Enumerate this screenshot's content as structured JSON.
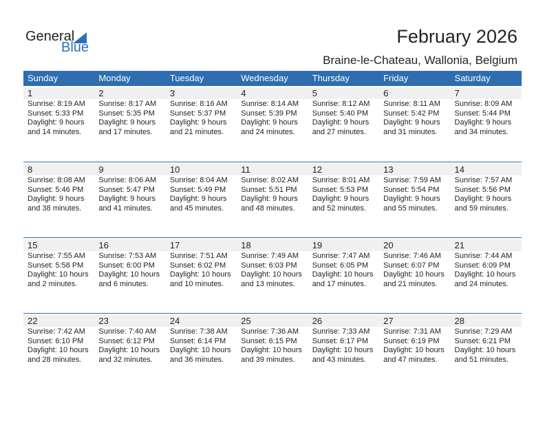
{
  "logo": {
    "general": "General",
    "blue": "Blue"
  },
  "header": {
    "title": "February 2026",
    "location": "Braine-le-Chateau, Wallonia, Belgium"
  },
  "colors": {
    "accent": "#2e6db0",
    "day_bar": "#f0f0f0"
  },
  "weekdays": [
    "Sunday",
    "Monday",
    "Tuesday",
    "Wednesday",
    "Thursday",
    "Friday",
    "Saturday"
  ],
  "weeks": [
    [
      {
        "day": "1",
        "sunrise": "Sunrise: 8:19 AM",
        "sunset": "Sunset: 5:33 PM",
        "daylight": "Daylight: 9 hours",
        "minutes": "and 14 minutes."
      },
      {
        "day": "2",
        "sunrise": "Sunrise: 8:17 AM",
        "sunset": "Sunset: 5:35 PM",
        "daylight": "Daylight: 9 hours",
        "minutes": "and 17 minutes."
      },
      {
        "day": "3",
        "sunrise": "Sunrise: 8:16 AM",
        "sunset": "Sunset: 5:37 PM",
        "daylight": "Daylight: 9 hours",
        "minutes": "and 21 minutes."
      },
      {
        "day": "4",
        "sunrise": "Sunrise: 8:14 AM",
        "sunset": "Sunset: 5:39 PM",
        "daylight": "Daylight: 9 hours",
        "minutes": "and 24 minutes."
      },
      {
        "day": "5",
        "sunrise": "Sunrise: 8:12 AM",
        "sunset": "Sunset: 5:40 PM",
        "daylight": "Daylight: 9 hours",
        "minutes": "and 27 minutes."
      },
      {
        "day": "6",
        "sunrise": "Sunrise: 8:11 AM",
        "sunset": "Sunset: 5:42 PM",
        "daylight": "Daylight: 9 hours",
        "minutes": "and 31 minutes."
      },
      {
        "day": "7",
        "sunrise": "Sunrise: 8:09 AM",
        "sunset": "Sunset: 5:44 PM",
        "daylight": "Daylight: 9 hours",
        "minutes": "and 34 minutes."
      }
    ],
    [
      {
        "day": "8",
        "sunrise": "Sunrise: 8:08 AM",
        "sunset": "Sunset: 5:46 PM",
        "daylight": "Daylight: 9 hours",
        "minutes": "and 38 minutes."
      },
      {
        "day": "9",
        "sunrise": "Sunrise: 8:06 AM",
        "sunset": "Sunset: 5:47 PM",
        "daylight": "Daylight: 9 hours",
        "minutes": "and 41 minutes."
      },
      {
        "day": "10",
        "sunrise": "Sunrise: 8:04 AM",
        "sunset": "Sunset: 5:49 PM",
        "daylight": "Daylight: 9 hours",
        "minutes": "and 45 minutes."
      },
      {
        "day": "11",
        "sunrise": "Sunrise: 8:02 AM",
        "sunset": "Sunset: 5:51 PM",
        "daylight": "Daylight: 9 hours",
        "minutes": "and 48 minutes."
      },
      {
        "day": "12",
        "sunrise": "Sunrise: 8:01 AM",
        "sunset": "Sunset: 5:53 PM",
        "daylight": "Daylight: 9 hours",
        "minutes": "and 52 minutes."
      },
      {
        "day": "13",
        "sunrise": "Sunrise: 7:59 AM",
        "sunset": "Sunset: 5:54 PM",
        "daylight": "Daylight: 9 hours",
        "minutes": "and 55 minutes."
      },
      {
        "day": "14",
        "sunrise": "Sunrise: 7:57 AM",
        "sunset": "Sunset: 5:56 PM",
        "daylight": "Daylight: 9 hours",
        "minutes": "and 59 minutes."
      }
    ],
    [
      {
        "day": "15",
        "sunrise": "Sunrise: 7:55 AM",
        "sunset": "Sunset: 5:58 PM",
        "daylight": "Daylight: 10 hours",
        "minutes": "and 2 minutes."
      },
      {
        "day": "16",
        "sunrise": "Sunrise: 7:53 AM",
        "sunset": "Sunset: 6:00 PM",
        "daylight": "Daylight: 10 hours",
        "minutes": "and 6 minutes."
      },
      {
        "day": "17",
        "sunrise": "Sunrise: 7:51 AM",
        "sunset": "Sunset: 6:02 PM",
        "daylight": "Daylight: 10 hours",
        "minutes": "and 10 minutes."
      },
      {
        "day": "18",
        "sunrise": "Sunrise: 7:49 AM",
        "sunset": "Sunset: 6:03 PM",
        "daylight": "Daylight: 10 hours",
        "minutes": "and 13 minutes."
      },
      {
        "day": "19",
        "sunrise": "Sunrise: 7:47 AM",
        "sunset": "Sunset: 6:05 PM",
        "daylight": "Daylight: 10 hours",
        "minutes": "and 17 minutes."
      },
      {
        "day": "20",
        "sunrise": "Sunrise: 7:46 AM",
        "sunset": "Sunset: 6:07 PM",
        "daylight": "Daylight: 10 hours",
        "minutes": "and 21 minutes."
      },
      {
        "day": "21",
        "sunrise": "Sunrise: 7:44 AM",
        "sunset": "Sunset: 6:09 PM",
        "daylight": "Daylight: 10 hours",
        "minutes": "and 24 minutes."
      }
    ],
    [
      {
        "day": "22",
        "sunrise": "Sunrise: 7:42 AM",
        "sunset": "Sunset: 6:10 PM",
        "daylight": "Daylight: 10 hours",
        "minutes": "and 28 minutes."
      },
      {
        "day": "23",
        "sunrise": "Sunrise: 7:40 AM",
        "sunset": "Sunset: 6:12 PM",
        "daylight": "Daylight: 10 hours",
        "minutes": "and 32 minutes."
      },
      {
        "day": "24",
        "sunrise": "Sunrise: 7:38 AM",
        "sunset": "Sunset: 6:14 PM",
        "daylight": "Daylight: 10 hours",
        "minutes": "and 36 minutes."
      },
      {
        "day": "25",
        "sunrise": "Sunrise: 7:36 AM",
        "sunset": "Sunset: 6:15 PM",
        "daylight": "Daylight: 10 hours",
        "minutes": "and 39 minutes."
      },
      {
        "day": "26",
        "sunrise": "Sunrise: 7:33 AM",
        "sunset": "Sunset: 6:17 PM",
        "daylight": "Daylight: 10 hours",
        "minutes": "and 43 minutes."
      },
      {
        "day": "27",
        "sunrise": "Sunrise: 7:31 AM",
        "sunset": "Sunset: 6:19 PM",
        "daylight": "Daylight: 10 hours",
        "minutes": "and 47 minutes."
      },
      {
        "day": "28",
        "sunrise": "Sunrise: 7:29 AM",
        "sunset": "Sunset: 6:21 PM",
        "daylight": "Daylight: 10 hours",
        "minutes": "and 51 minutes."
      }
    ]
  ]
}
